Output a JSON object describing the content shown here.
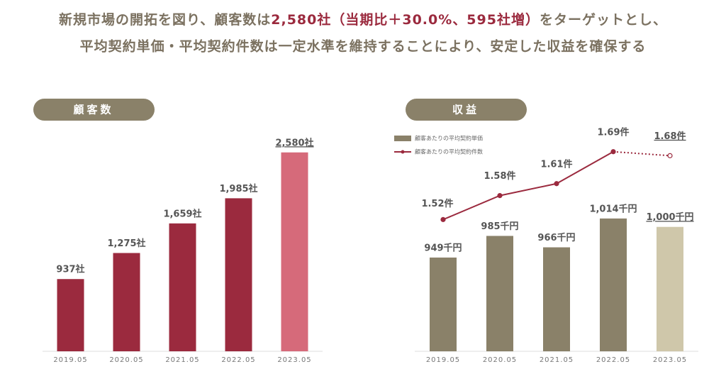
{
  "header": {
    "line1": [
      "新規市場の開拓を図り、顧客数は",
      "2,580社（当期比＋30.0%、595社増）",
      "をターゲットとし、"
    ],
    "line2": "平均契約単価・平均契約件数は一定水準を維持することにより、安定した収益を確保する"
  },
  "chart_data": [
    {
      "type": "bar",
      "title": "顧客数",
      "categories": [
        "2019.05",
        "2020.05",
        "2021.05",
        "2022.05",
        "2023.05"
      ],
      "values": [
        937,
        1275,
        1659,
        1985,
        2580
      ],
      "value_labels": [
        "937社",
        "1,275社",
        "1,659社",
        "1,985社",
        "2,580社"
      ],
      "colors": [
        "#9b2a3e",
        "#9b2a3e",
        "#9b2a3e",
        "#9b2a3e",
        "#d66a7a"
      ],
      "ylim": [
        0,
        2900
      ]
    },
    {
      "type": "combo",
      "title": "収益",
      "categories": [
        "2019.05",
        "2020.05",
        "2021.05",
        "2022.05",
        "2023.05"
      ],
      "series": [
        {
          "name": "顧客あたりの平均契約単価",
          "type": "bar",
          "values": [
            949,
            985,
            966,
            1014,
            1000
          ],
          "value_labels": [
            "949千円",
            "985千円",
            "966千円",
            "1,014千円",
            "1,000千円"
          ],
          "colors": [
            "#8a8169",
            "#8a8169",
            "#8a8169",
            "#8a8169",
            "#cfc7aa"
          ]
        },
        {
          "name": "顧客あたりの平均契約件数",
          "type": "line",
          "axis": "y2",
          "values": [
            1.52,
            1.58,
            1.61,
            1.69,
            1.68
          ],
          "value_labels": [
            "1.52件",
            "1.58件",
            "1.61件",
            "1.69件",
            "1.68件"
          ],
          "color": "#9b2a3e"
        }
      ],
      "ylim": [
        793,
        1165
      ],
      "y2lim": [
        1.19,
        1.75
      ]
    }
  ]
}
